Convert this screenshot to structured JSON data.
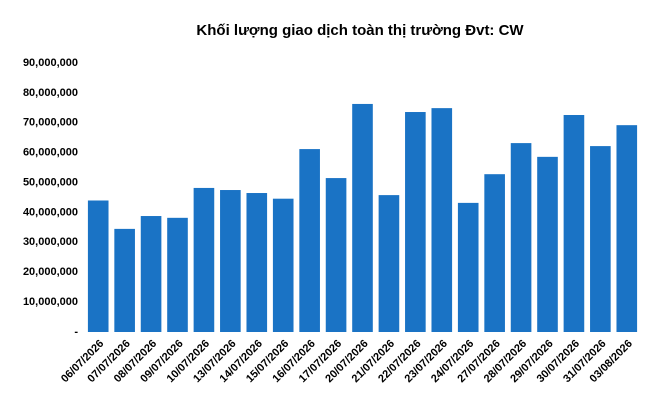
{
  "chart_data": {
    "type": "bar",
    "title": "Khối lượng giao dịch toàn thị trường Đvt: CW",
    "categories": [
      "06/07/2026",
      "07/07/2026",
      "08/07/2026",
      "09/07/2026",
      "10/07/2026",
      "13/07/2026",
      "14/07/2026",
      "15/07/2026",
      "16/07/2026",
      "17/07/2026",
      "20/07/2026",
      "21/07/2026",
      "22/07/2026",
      "23/07/2026",
      "24/07/2026",
      "27/07/2026",
      "28/07/2026",
      "29/07/2026",
      "30/07/2026",
      "31/07/2026",
      "03/08/2026"
    ],
    "values": [
      44000000,
      34500000,
      38800000,
      38200000,
      48200000,
      47500000,
      46500000,
      44600000,
      61200000,
      51500000,
      76300000,
      45800000,
      73600000,
      74900000,
      43200000,
      52800000,
      63200000,
      58600000,
      72600000,
      62200000,
      69200000
    ],
    "color": "#1a73c5",
    "ylim": [
      0,
      90000000
    ],
    "yticks": [
      {
        "value": 0,
        "label": "-"
      },
      {
        "value": 10000000,
        "label": "10,000,000"
      },
      {
        "value": 20000000,
        "label": "20,000,000"
      },
      {
        "value": 30000000,
        "label": "30,000,000"
      },
      {
        "value": 40000000,
        "label": "40,000,000"
      },
      {
        "value": 50000000,
        "label": "50,000,000"
      },
      {
        "value": 60000000,
        "label": "60,000,000"
      },
      {
        "value": 70000000,
        "label": "70,000,000"
      },
      {
        "value": 80000000,
        "label": "80,000,000"
      },
      {
        "value": 90000000,
        "label": "90,000,000"
      }
    ],
    "grid": false
  }
}
